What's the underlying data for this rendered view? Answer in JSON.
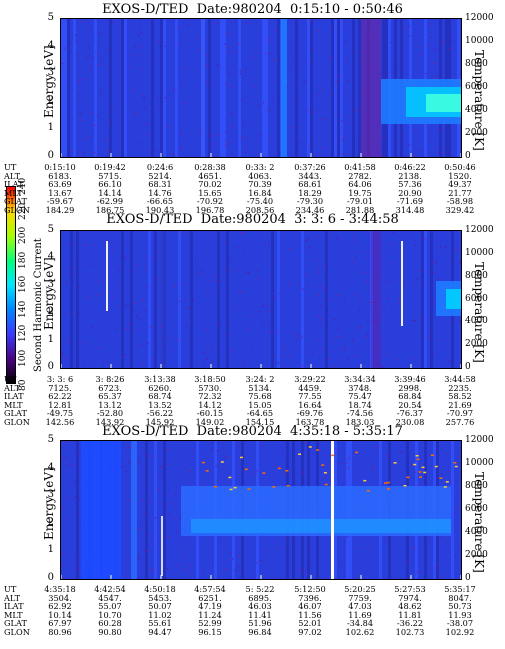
{
  "colorbar": {
    "title": "Second Harmonic Current",
    "ticks": [
      "80",
      "100",
      "120",
      "140",
      "160",
      "180",
      "200",
      "220",
      "240"
    ],
    "colors": [
      "#000000",
      "#4b0082",
      "#3b3bff",
      "#0088ff",
      "#00e5ff",
      "#00ff7f",
      "#a6ff00",
      "#ffd700",
      "#ff0000"
    ]
  },
  "chart_data": [
    {
      "type": "heatmap",
      "title": "EXOS-D/TED  Date:980204  0:15:10 - 0:50:46",
      "ylabel": "Energy [eV]",
      "ylabel_right": "Temperature [K]",
      "ylim": [
        0,
        5
      ],
      "ylim_right": [
        0,
        12000
      ],
      "yticks": [
        "0",
        "1",
        "2",
        "3",
        "4",
        "5"
      ],
      "yticks_right": [
        "0",
        "2000",
        "4000",
        "6000",
        "8000",
        "10000",
        "12000"
      ],
      "table_labels": [
        "UT",
        "ALT",
        "ILAT",
        "MLT",
        "GLAT",
        "GLON"
      ],
      "table": [
        [
          "0:15:10",
          "0:19:42",
          "0:24:6",
          "0:28:38",
          "0:33: 2",
          "0:37:26",
          "0:41:58",
          "0:46:22",
          "0:50:46"
        ],
        [
          "6183.",
          "5715.",
          "5214.",
          "4651.",
          "4063.",
          "3443.",
          "2782.",
          "2138.",
          "1520."
        ],
        [
          "63.69",
          "66.10",
          "68.31",
          "70.02",
          "70.39",
          "68.61",
          "64.06",
          "57.36",
          "49.37"
        ],
        [
          "13.67",
          "14.14",
          "14.76",
          "15.65",
          "16.84",
          "18.29",
          "19.75",
          "20.90",
          "21.77"
        ],
        [
          "-59.67",
          "-62.99",
          "-66.65",
          "-70.92",
          "-75.40",
          "-79.30",
          "-79.01",
          "-71.69",
          "-58.98"
        ],
        [
          "184.29",
          "186.75",
          "190.43",
          "196.78",
          "208.56",
          "234.46",
          "281.88",
          "314.48",
          "329.42"
        ]
      ]
    },
    {
      "type": "heatmap",
      "title": "EXOS-D/TED  Date:980204  3: 3: 6 - 3:44:58",
      "ylabel": "Energy [eV]",
      "ylabel_right": "Temperature [K]",
      "ylim": [
        0,
        5
      ],
      "ylim_right": [
        0,
        12000
      ],
      "yticks": [
        "0",
        "1",
        "2",
        "3",
        "4",
        "5"
      ],
      "yticks_right": [
        "0",
        "2000",
        "4000",
        "6000",
        "8000",
        "10000",
        "12000"
      ],
      "table_labels": [
        "UT",
        "ALT",
        "ILAT",
        "MLT",
        "GLAT",
        "GLON"
      ],
      "table": [
        [
          "3: 3: 6",
          "3: 8:26",
          "3:13:38",
          "3:18:50",
          "3:24: 2",
          "3:29:22",
          "3:34:34",
          "3:39:46",
          "3:44:58"
        ],
        [
          "7125.",
          "6723.",
          "6260.",
          "5730.",
          "5134.",
          "4459.",
          "3748.",
          "2998.",
          "2235."
        ],
        [
          "62.22",
          "65.37",
          "68.74",
          "72.32",
          "75.68",
          "77.55",
          "75.47",
          "68.84",
          "58.52"
        ],
        [
          "12.81",
          "13.12",
          "13.52",
          "14.12",
          "15.05",
          "16.64",
          "18.74",
          "20.54",
          "21.69"
        ],
        [
          "-49.75",
          "-52.80",
          "-56.22",
          "-60.15",
          "-64.65",
          "-69.76",
          "-74.56",
          "-76.37",
          "-70.97"
        ],
        [
          "142.56",
          "143.92",
          "145.92",
          "149.02",
          "154.15",
          "163.78",
          "183.03",
          "230.08",
          "257.76"
        ]
      ]
    },
    {
      "type": "heatmap",
      "title": "EXOS-D/TED  Date:980204  4:35:18 - 5:35:17",
      "ylabel": "Energy [eV]",
      "ylabel_right": "Temperature [K]",
      "ylim": [
        0,
        5
      ],
      "ylim_right": [
        0,
        12000
      ],
      "yticks": [
        "0",
        "1",
        "2",
        "3",
        "4",
        "5"
      ],
      "yticks_right": [
        "0",
        "2000",
        "4000",
        "6000",
        "8000",
        "10000",
        "12000"
      ],
      "table_labels": [
        "UT",
        "ALT",
        "ILAT",
        "MLT",
        "GLAT",
        "GLON"
      ],
      "table": [
        [
          "4:35:18",
          "4:42:54",
          "4:50:18",
          "4:57:54",
          "5: 5:22",
          "5:12:50",
          "5:20:25",
          "5:27:53",
          "5:35:17"
        ],
        [
          "3504.",
          "4547.",
          "5453.",
          "6251.",
          "6895.",
          "7396.",
          "7759.",
          "7974.",
          "8047."
        ],
        [
          "62.92",
          "55.07",
          "50.07",
          "47.19",
          "46.03",
          "46.07",
          "47.03",
          "48.62",
          "50.73"
        ],
        [
          "10.14",
          "10.70",
          "11.02",
          "11.24",
          "11.41",
          "11.56",
          "11.69",
          "11.81",
          "11.93"
        ],
        [
          "67.97",
          "60.28",
          "55.61",
          "52.99",
          "51.96",
          "52.01",
          "-34.84",
          "-36.22",
          "-38.07"
        ],
        [
          "80.96",
          "90.80",
          "94.47",
          "96.15",
          "96.84",
          "97.02",
          "102.62",
          "102.73",
          "102.92"
        ]
      ]
    }
  ]
}
